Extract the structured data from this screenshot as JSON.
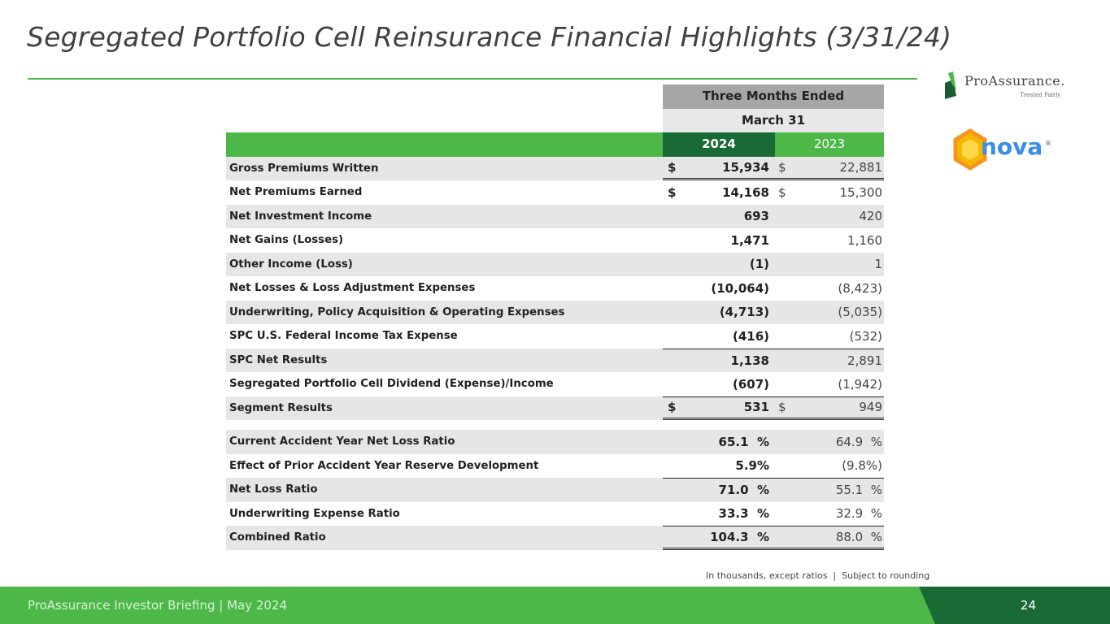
{
  "title": "Segregated Portfolio Cell Reinsurance Financial Highlights (3/31/24)",
  "logos": {
    "proassurance": "ProAssurance.",
    "proassurance_tagline": "Treated Fairly",
    "inova": "nova",
    "inova_reg": "®"
  },
  "table": {
    "header1": "Three Months Ended",
    "header2": "March 31",
    "year_current": "2024",
    "year_prior": "2023",
    "rows": [
      {
        "label": "Gross Premiums Written",
        "cur_sign": "$",
        "cur": "15,934",
        "prior_sign": "$",
        "prior": "22,881"
      },
      {
        "label": "Net Premiums Earned",
        "cur_sign": "$",
        "cur": "14,168",
        "prior_sign": "$",
        "prior": "15,300"
      },
      {
        "label": "Net Investment Income",
        "cur": "693",
        "prior": "420"
      },
      {
        "label": "Net Gains (Losses)",
        "cur": "1,471",
        "prior": "1,160"
      },
      {
        "label": "Other Income (Loss)",
        "cur": "(1)",
        "prior": "1"
      },
      {
        "label": "Net Losses & Loss Adjustment Expenses",
        "cur": "(10,064)",
        "prior": "(8,423)"
      },
      {
        "label": "Underwriting, Policy Acquisition & Operating Expenses",
        "cur": "(4,713)",
        "prior": "(5,035)"
      },
      {
        "label": "SPC U.S. Federal Income Tax Expense",
        "cur": "(416)",
        "prior": "(532)"
      },
      {
        "label": "SPC Net Results",
        "cur": "1,138",
        "prior": "2,891"
      },
      {
        "label": "Segregated Portfolio Cell Dividend (Expense)/Income",
        "cur": "(607)",
        "prior": "(1,942)"
      },
      {
        "label": "Segment Results",
        "cur_sign": "$",
        "cur": "531",
        "prior_sign": "$",
        "prior": "949"
      }
    ],
    "ratios": [
      {
        "label": "Current Accident Year Net Loss Ratio",
        "cur": "65.1  %",
        "prior": "64.9  %"
      },
      {
        "label": "Effect of Prior Accident Year Reserve Development",
        "cur": "5.9%",
        "prior": "(9.8%)"
      },
      {
        "label": "Net Loss Ratio",
        "cur": "71.0  %",
        "prior": "55.1  %"
      },
      {
        "label": "Underwriting Expense Ratio",
        "cur": "33.3  %",
        "prior": "32.9  %"
      },
      {
        "label": "Combined Ratio",
        "cur": "104.3  %",
        "prior": "88.0  %"
      }
    ]
  },
  "footnote": "In thousands, except ratios  |  Subject to rounding",
  "footer": {
    "left": "ProAssurance Investor Briefing | May 2024",
    "page": "24"
  },
  "colors": {
    "green": "#4db848",
    "dark_green": "#1a6a36",
    "gray_header": "#a6a6a6",
    "row_gray": "#e6e6e6"
  }
}
